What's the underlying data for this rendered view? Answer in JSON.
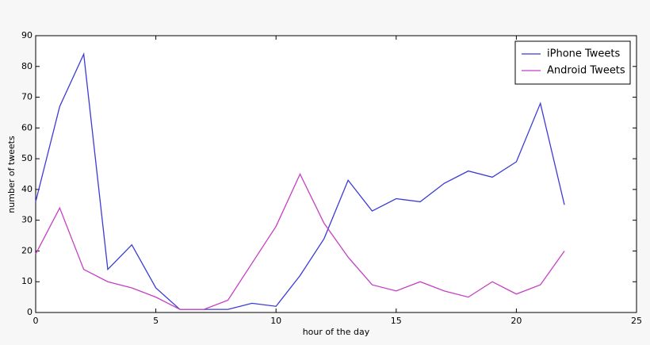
{
  "chart_data": {
    "type": "line",
    "xlabel": "hour of the day",
    "ylabel": "number of tweets",
    "x": [
      0,
      1,
      2,
      3,
      4,
      5,
      6,
      7,
      8,
      9,
      10,
      11,
      12,
      13,
      14,
      15,
      16,
      17,
      18,
      19,
      20,
      21,
      22
    ],
    "series": [
      {
        "name": "iPhone Tweets",
        "color": "#3b3bd6",
        "values": [
          36,
          67,
          84,
          14,
          22,
          8,
          1,
          1,
          1,
          3,
          2,
          12,
          24,
          43,
          33,
          37,
          36,
          42,
          46,
          44,
          49,
          68,
          35
        ]
      },
      {
        "name": "Android Tweets",
        "color": "#c43fc4",
        "values": [
          19,
          34,
          14,
          10,
          8,
          5,
          1,
          1,
          4,
          16,
          28,
          45,
          29,
          18,
          9,
          7,
          10,
          7,
          5,
          10,
          6,
          9,
          20
        ]
      }
    ],
    "xlim": [
      0,
      25
    ],
    "xticks": [
      0,
      5,
      10,
      15,
      20,
      25
    ],
    "ylim": [
      0,
      90
    ],
    "yticks": [
      0,
      10,
      20,
      30,
      40,
      50,
      60,
      70,
      80,
      90
    ],
    "legend": "upper-right",
    "grid": false
  }
}
